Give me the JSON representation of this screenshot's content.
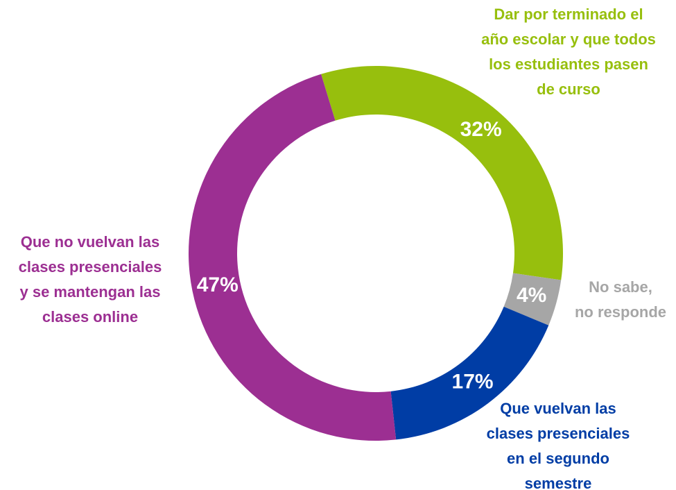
{
  "chart_data": {
    "type": "pie",
    "categories": [
      "Dar por terminado el\naño escolar y que todos\nlos estudiantes pasen\nde curso",
      "No sabe,\nno responde",
      "Que vuelvan las\nclases presenciales\nen el segundo\nsemestre",
      "Que no vuelvan las\nclases presenciales\ny se mantengan las\nclases online"
    ],
    "values": [
      32,
      4,
      17,
      47
    ],
    "value_labels": [
      "32%",
      "4%",
      "17%",
      "47%"
    ],
    "colors": [
      "#97bf0d",
      "#a6a6a6",
      "#003da5",
      "#9c2f92"
    ],
    "donut": true
  }
}
